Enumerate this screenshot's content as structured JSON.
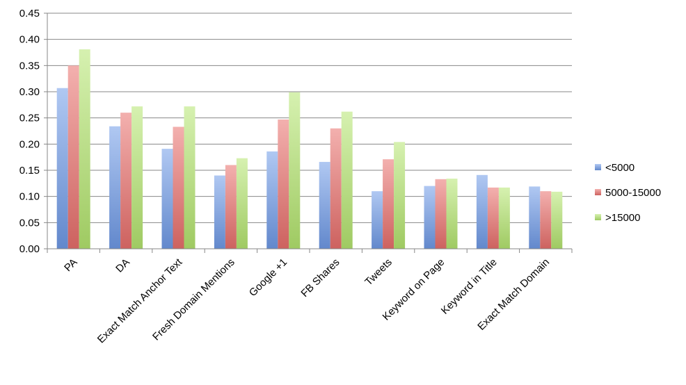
{
  "chart_data": {
    "type": "bar",
    "categories": [
      "PA",
      "DA",
      "Exact Match Anchor Text",
      "Fresh Domain Mentions",
      "Google +1",
      "FB Shares",
      "Tweets",
      "Keyword on Page",
      "Keyword in Title",
      "Exact Match Domain"
    ],
    "series": [
      {
        "name": "<5000",
        "color": "#6f9be8",
        "values": [
          0.307,
          0.234,
          0.191,
          0.14,
          0.186,
          0.166,
          0.11,
          0.12,
          0.141,
          0.119
        ]
      },
      {
        "name": "5000-15000",
        "color": "#e96f6c",
        "values": [
          0.35,
          0.26,
          0.233,
          0.16,
          0.247,
          0.23,
          0.171,
          0.133,
          0.117,
          0.11
        ]
      },
      {
        "name": ">15000",
        "color": "#b5e56f",
        "values": [
          0.381,
          0.272,
          0.272,
          0.173,
          0.299,
          0.262,
          0.204,
          0.134,
          0.117,
          0.109
        ]
      }
    ],
    "yticks": [
      "0.00",
      "0.05",
      "0.10",
      "0.15",
      "0.20",
      "0.25",
      "0.30",
      "0.35",
      "0.40",
      "0.45"
    ],
    "ylim": [
      0,
      0.45
    ],
    "grid": true,
    "legend_position": "right"
  }
}
